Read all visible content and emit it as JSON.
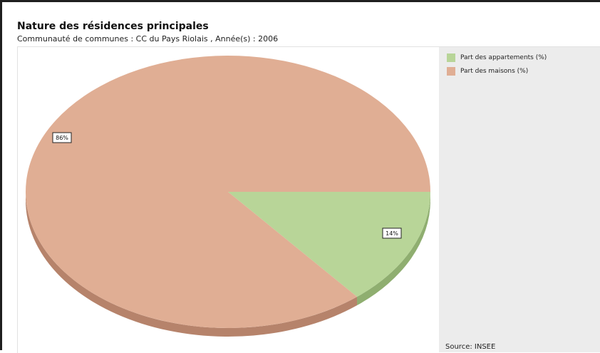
{
  "chart_data": {
    "type": "pie",
    "title": "Nature des résidences principales",
    "subtitle": "Communauté de communes : CC du Pays Riolais , Année(s) : 2006",
    "slices": [
      {
        "name": "Part des appartements (%)",
        "value": 14,
        "label": "14%",
        "color": "#b8d598",
        "side_color": "#8fae70"
      },
      {
        "name": "Part des maisons (%)",
        "value": 86,
        "label": "86%",
        "color": "#e0ae94",
        "side_color": "#b6836b"
      }
    ],
    "legend_placement": "right",
    "source": "Source: INSEE",
    "three_d": true
  }
}
